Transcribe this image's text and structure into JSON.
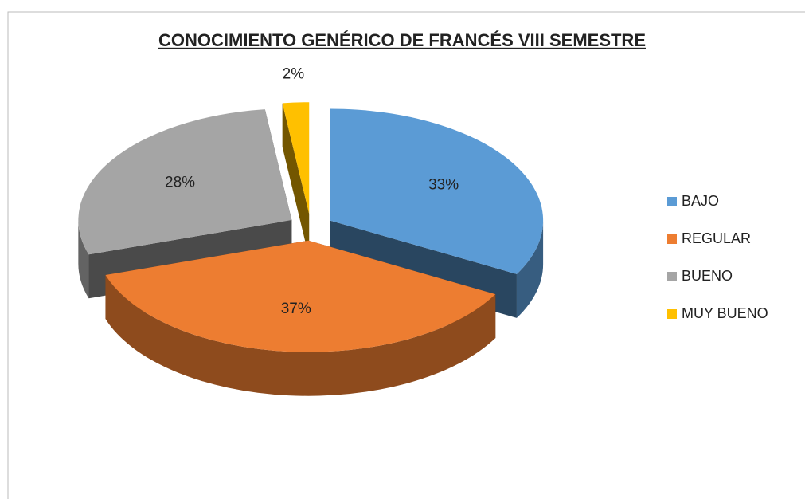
{
  "chart_data": {
    "type": "pie3d",
    "title": "CONOCIMIENTO GENÉRICO DE FRANCÉS VIII SEMESTRE",
    "categories": [
      "BAJO",
      "REGULAR",
      "BUENO",
      "MUY BUENO"
    ],
    "values": [
      33,
      37,
      28,
      2
    ],
    "value_labels": [
      "33%",
      "37%",
      "28%",
      "2%"
    ],
    "colors": [
      "#5b9bd5",
      "#ed7d31",
      "#a5a5a5",
      "#ffc000"
    ],
    "legend": "right"
  }
}
